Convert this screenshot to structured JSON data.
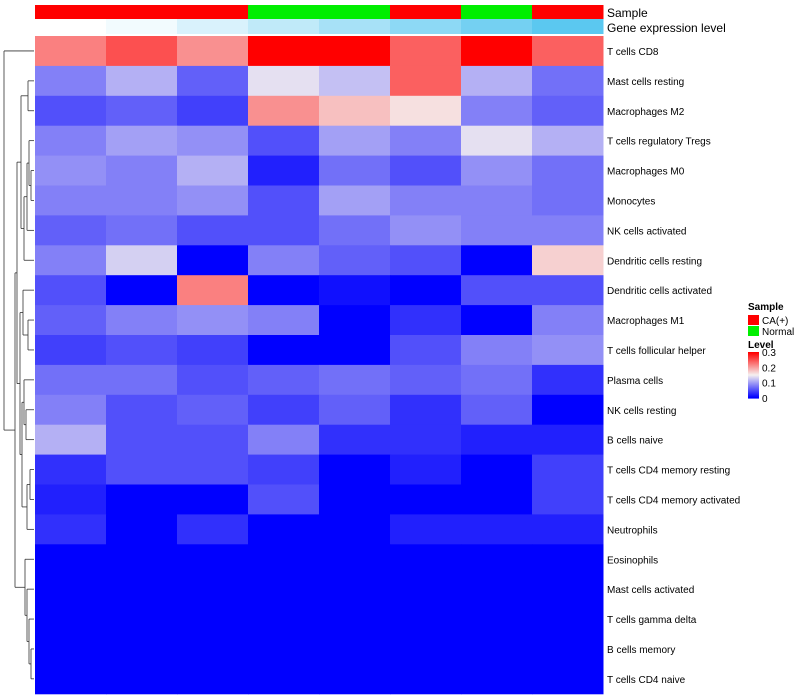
{
  "chart_data": {
    "type": "heatmap",
    "title": "",
    "annotations": [
      {
        "name": "Sample",
        "values": [
          "CA(+)",
          "CA(+)",
          "CA(+)",
          "Normal",
          "Normal",
          "CA(+)",
          "Normal",
          "CA(+)"
        ]
      },
      {
        "name": "Gene expression level",
        "values": [
          0.0,
          0.05,
          0.15,
          0.25,
          0.35,
          0.45,
          0.55,
          0.65
        ]
      }
    ],
    "rows": [
      "T cells CD8",
      "Mast cells resting",
      "Macrophages M2",
      "T cells regulatory  Tregs",
      "Macrophages M0",
      "Monocytes",
      "NK cells activated",
      "Dendritic cells resting",
      "Dendritic cells activated",
      "Macrophages M1",
      "T cells follicular helper",
      "Plasma cells",
      "NK cells resting",
      "B cells naive",
      "T cells CD4 memory resting",
      "T cells CD4 memory activated",
      "Neutrophils",
      "Eosinophils",
      "Mast cells activated",
      "T cells gamma delta",
      "B cells memory",
      "T cells CD4 naive"
    ],
    "values": [
      [
        0.22,
        0.25,
        0.21,
        0.3,
        0.3,
        0.24,
        0.3,
        0.24
      ],
      [
        0.08,
        0.11,
        0.06,
        0.14,
        0.12,
        0.24,
        0.11,
        0.07
      ],
      [
        0.05,
        0.06,
        0.04,
        0.21,
        0.18,
        0.16,
        0.08,
        0.06
      ],
      [
        0.08,
        0.1,
        0.09,
        0.05,
        0.1,
        0.08,
        0.14,
        0.11
      ],
      [
        0.09,
        0.08,
        0.11,
        0.02,
        0.07,
        0.05,
        0.09,
        0.07
      ],
      [
        0.08,
        0.08,
        0.09,
        0.05,
        0.1,
        0.08,
        0.08,
        0.07
      ],
      [
        0.06,
        0.07,
        0.05,
        0.05,
        0.07,
        0.09,
        0.08,
        0.08
      ],
      [
        0.08,
        0.13,
        0.0,
        0.08,
        0.06,
        0.05,
        0.0,
        0.17
      ],
      [
        0.05,
        0.0,
        0.22,
        0.0,
        0.01,
        0.0,
        0.05,
        0.05
      ],
      [
        0.06,
        0.08,
        0.09,
        0.08,
        0.0,
        0.03,
        0.0,
        0.08
      ],
      [
        0.04,
        0.05,
        0.04,
        0.0,
        0.0,
        0.05,
        0.08,
        0.09
      ],
      [
        0.07,
        0.07,
        0.05,
        0.06,
        0.07,
        0.06,
        0.07,
        0.03
      ],
      [
        0.08,
        0.05,
        0.06,
        0.04,
        0.06,
        0.03,
        0.06,
        0.0
      ],
      [
        0.11,
        0.05,
        0.05,
        0.08,
        0.03,
        0.03,
        0.02,
        0.02
      ],
      [
        0.03,
        0.05,
        0.05,
        0.04,
        0.0,
        0.02,
        0.0,
        0.04
      ],
      [
        0.02,
        0.0,
        0.0,
        0.05,
        0.0,
        0.0,
        0.0,
        0.04
      ],
      [
        0.03,
        0.0,
        0.03,
        0.0,
        0.0,
        0.02,
        0.02,
        0.02
      ],
      [
        0.0,
        0.0,
        0.0,
        0.0,
        0.0,
        0.0,
        0.0,
        0.0
      ],
      [
        0.0,
        0.0,
        0.0,
        0.0,
        0.0,
        0.0,
        0.0,
        0.0
      ],
      [
        0.0,
        0.0,
        0.0,
        0.0,
        0.0,
        0.0,
        0.0,
        0.0
      ],
      [
        0.0,
        0.0,
        0.0,
        0.0,
        0.0,
        0.0,
        0.0,
        0.0
      ],
      [
        0.0,
        0.0,
        0.0,
        0.0,
        0.0,
        0.0,
        0.0,
        0.0
      ]
    ],
    "legend": {
      "sample_title": "Sample",
      "sample_entries": [
        {
          "label": "CA(+)",
          "color": "#ff0000"
        },
        {
          "label": "Normal",
          "color": "#00ee00"
        }
      ],
      "level_title": "Level",
      "level_ticks": [
        "0.3",
        "0.2",
        "0.1",
        "0"
      ],
      "level_tick_values": [
        0.3,
        0.2,
        0.1,
        0.0
      ],
      "range": [
        0,
        0.3
      ],
      "colors": {
        "low": "#0000ff",
        "mid": "#f5f0f0",
        "high": "#ff0000",
        "mid_value": 0.15
      }
    },
    "dendrogram": "row clustering tree (left side)"
  }
}
